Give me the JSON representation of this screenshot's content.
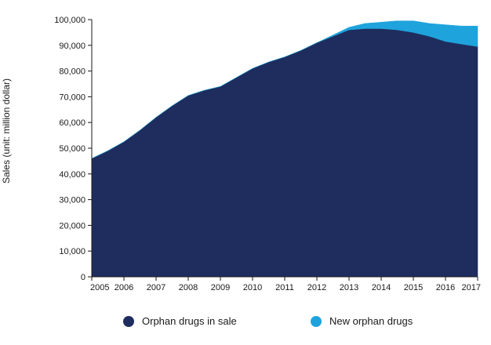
{
  "chart_data": {
    "type": "area",
    "stacked": true,
    "title": "",
    "xlabel": "",
    "ylabel": "Sales (unit: million dollar)",
    "xlim": [
      2005,
      2017
    ],
    "ylim": [
      0,
      100000
    ],
    "x_ticks": [
      "2005",
      "2006",
      "2007",
      "2008",
      "2009",
      "2010",
      "2011",
      "2012",
      "2013",
      "2014",
      "2015",
      "2016",
      "2017"
    ],
    "y_ticks": [
      "0",
      "10,000",
      "20,000",
      "30,000",
      "40,000",
      "50,000",
      "60,000",
      "70,000",
      "80,000",
      "90,000",
      "100,000"
    ],
    "grid": false,
    "legend_position": "bottom",
    "x": [
      2005,
      2005.5,
      2006,
      2006.5,
      2007,
      2007.5,
      2008,
      2008.5,
      2009,
      2009.5,
      2010,
      2010.5,
      2011,
      2011.5,
      2012,
      2012.5,
      2013,
      2013.5,
      2014,
      2014.5,
      2015,
      2015.5,
      2016,
      2016.5,
      2017
    ],
    "series": [
      {
        "name": "Orphan drugs in sale",
        "color": "#1e2d5e",
        "values": [
          46000,
          49000,
          52500,
          57000,
          62000,
          66500,
          70500,
          72500,
          74000,
          77500,
          81000,
          83500,
          85500,
          88000,
          91000,
          93500,
          96000,
          96500,
          96500,
          96000,
          95000,
          93500,
          91500,
          90500,
          89500
        ]
      },
      {
        "name": "New orphan drugs",
        "color": "#1fa3dc",
        "values": [
          0,
          0,
          0,
          0,
          0,
          0,
          0,
          0,
          0,
          0,
          0,
          0,
          0,
          0,
          0,
          500,
          1000,
          2000,
          2500,
          3500,
          4500,
          5000,
          6500,
          7000,
          8000
        ]
      }
    ]
  }
}
